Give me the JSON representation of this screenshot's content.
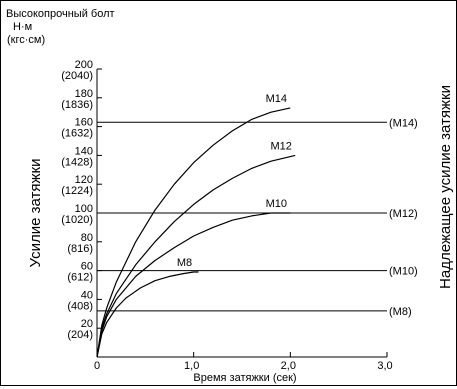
{
  "chart_data": {
    "type": "line",
    "title": "Высокопрочный болт",
    "unit_primary": "Н·м",
    "unit_secondary": "(кгс·см)",
    "xlabel": "Время затяжки (сек)",
    "ylabel": "Усилие затяжки",
    "right_label": "Надлежащее усилие затяжки",
    "xlim": [
      0,
      3
    ],
    "ylim": [
      0,
      200
    ],
    "x_ticks": [
      {
        "value": 0,
        "label": "0"
      },
      {
        "value": 1,
        "label": "1,0"
      },
      {
        "value": 2,
        "label": "2,0"
      },
      {
        "value": 3,
        "label": "3,0"
      }
    ],
    "y_ticks": [
      {
        "value": 0,
        "label": "0",
        "sub": ""
      },
      {
        "value": 20,
        "label": "20",
        "sub": "(204)"
      },
      {
        "value": 40,
        "label": "40",
        "sub": "(408)"
      },
      {
        "value": 60,
        "label": "60",
        "sub": "(612)"
      },
      {
        "value": 80,
        "label": "80",
        "sub": "(816)"
      },
      {
        "value": 100,
        "label": "100",
        "sub": "(1020)"
      },
      {
        "value": 120,
        "label": "120",
        "sub": "(1224)"
      },
      {
        "value": 140,
        "label": "140",
        "sub": "(1428)"
      },
      {
        "value": 160,
        "label": "160",
        "sub": "(1632)"
      },
      {
        "value": 180,
        "label": "180",
        "sub": "(1836)"
      },
      {
        "value": 200,
        "label": "200",
        "sub": "(2040)"
      }
    ],
    "series": [
      {
        "name": "M8",
        "x": [
          0,
          0.05,
          0.1,
          0.2,
          0.3,
          0.45,
          0.6,
          0.75,
          0.9,
          1.0,
          1.05
        ],
        "y": [
          0,
          16,
          24,
          34,
          41,
          48,
          53,
          56,
          58,
          59,
          59
        ]
      },
      {
        "name": "M10",
        "x": [
          0,
          0.05,
          0.1,
          0.2,
          0.4,
          0.6,
          0.8,
          1.0,
          1.2,
          1.4,
          1.6,
          1.8,
          2.0
        ],
        "y": [
          0,
          18,
          28,
          40,
          56,
          67,
          76,
          84,
          90,
          95,
          98,
          100,
          100
        ]
      },
      {
        "name": "M12",
        "x": [
          0,
          0.05,
          0.1,
          0.2,
          0.4,
          0.6,
          0.8,
          1.0,
          1.2,
          1.4,
          1.6,
          1.8,
          2.05
        ],
        "y": [
          0,
          20,
          30,
          44,
          64,
          80,
          94,
          106,
          116,
          124,
          131,
          136,
          140
        ]
      },
      {
        "name": "M14",
        "x": [
          0,
          0.05,
          0.1,
          0.2,
          0.4,
          0.6,
          0.8,
          1.0,
          1.2,
          1.4,
          1.6,
          1.8,
          2.0
        ],
        "y": [
          0,
          22,
          34,
          52,
          80,
          102,
          120,
          135,
          147,
          157,
          165,
          170,
          173
        ]
      }
    ],
    "reference_lines": [
      {
        "label": "(M14)",
        "y": 163
      },
      {
        "label": "(M12)",
        "y": 100
      },
      {
        "label": "(M10)",
        "y": 60
      },
      {
        "label": "(M8)",
        "y": 32
      }
    ],
    "grid": false,
    "legend": "inline"
  }
}
